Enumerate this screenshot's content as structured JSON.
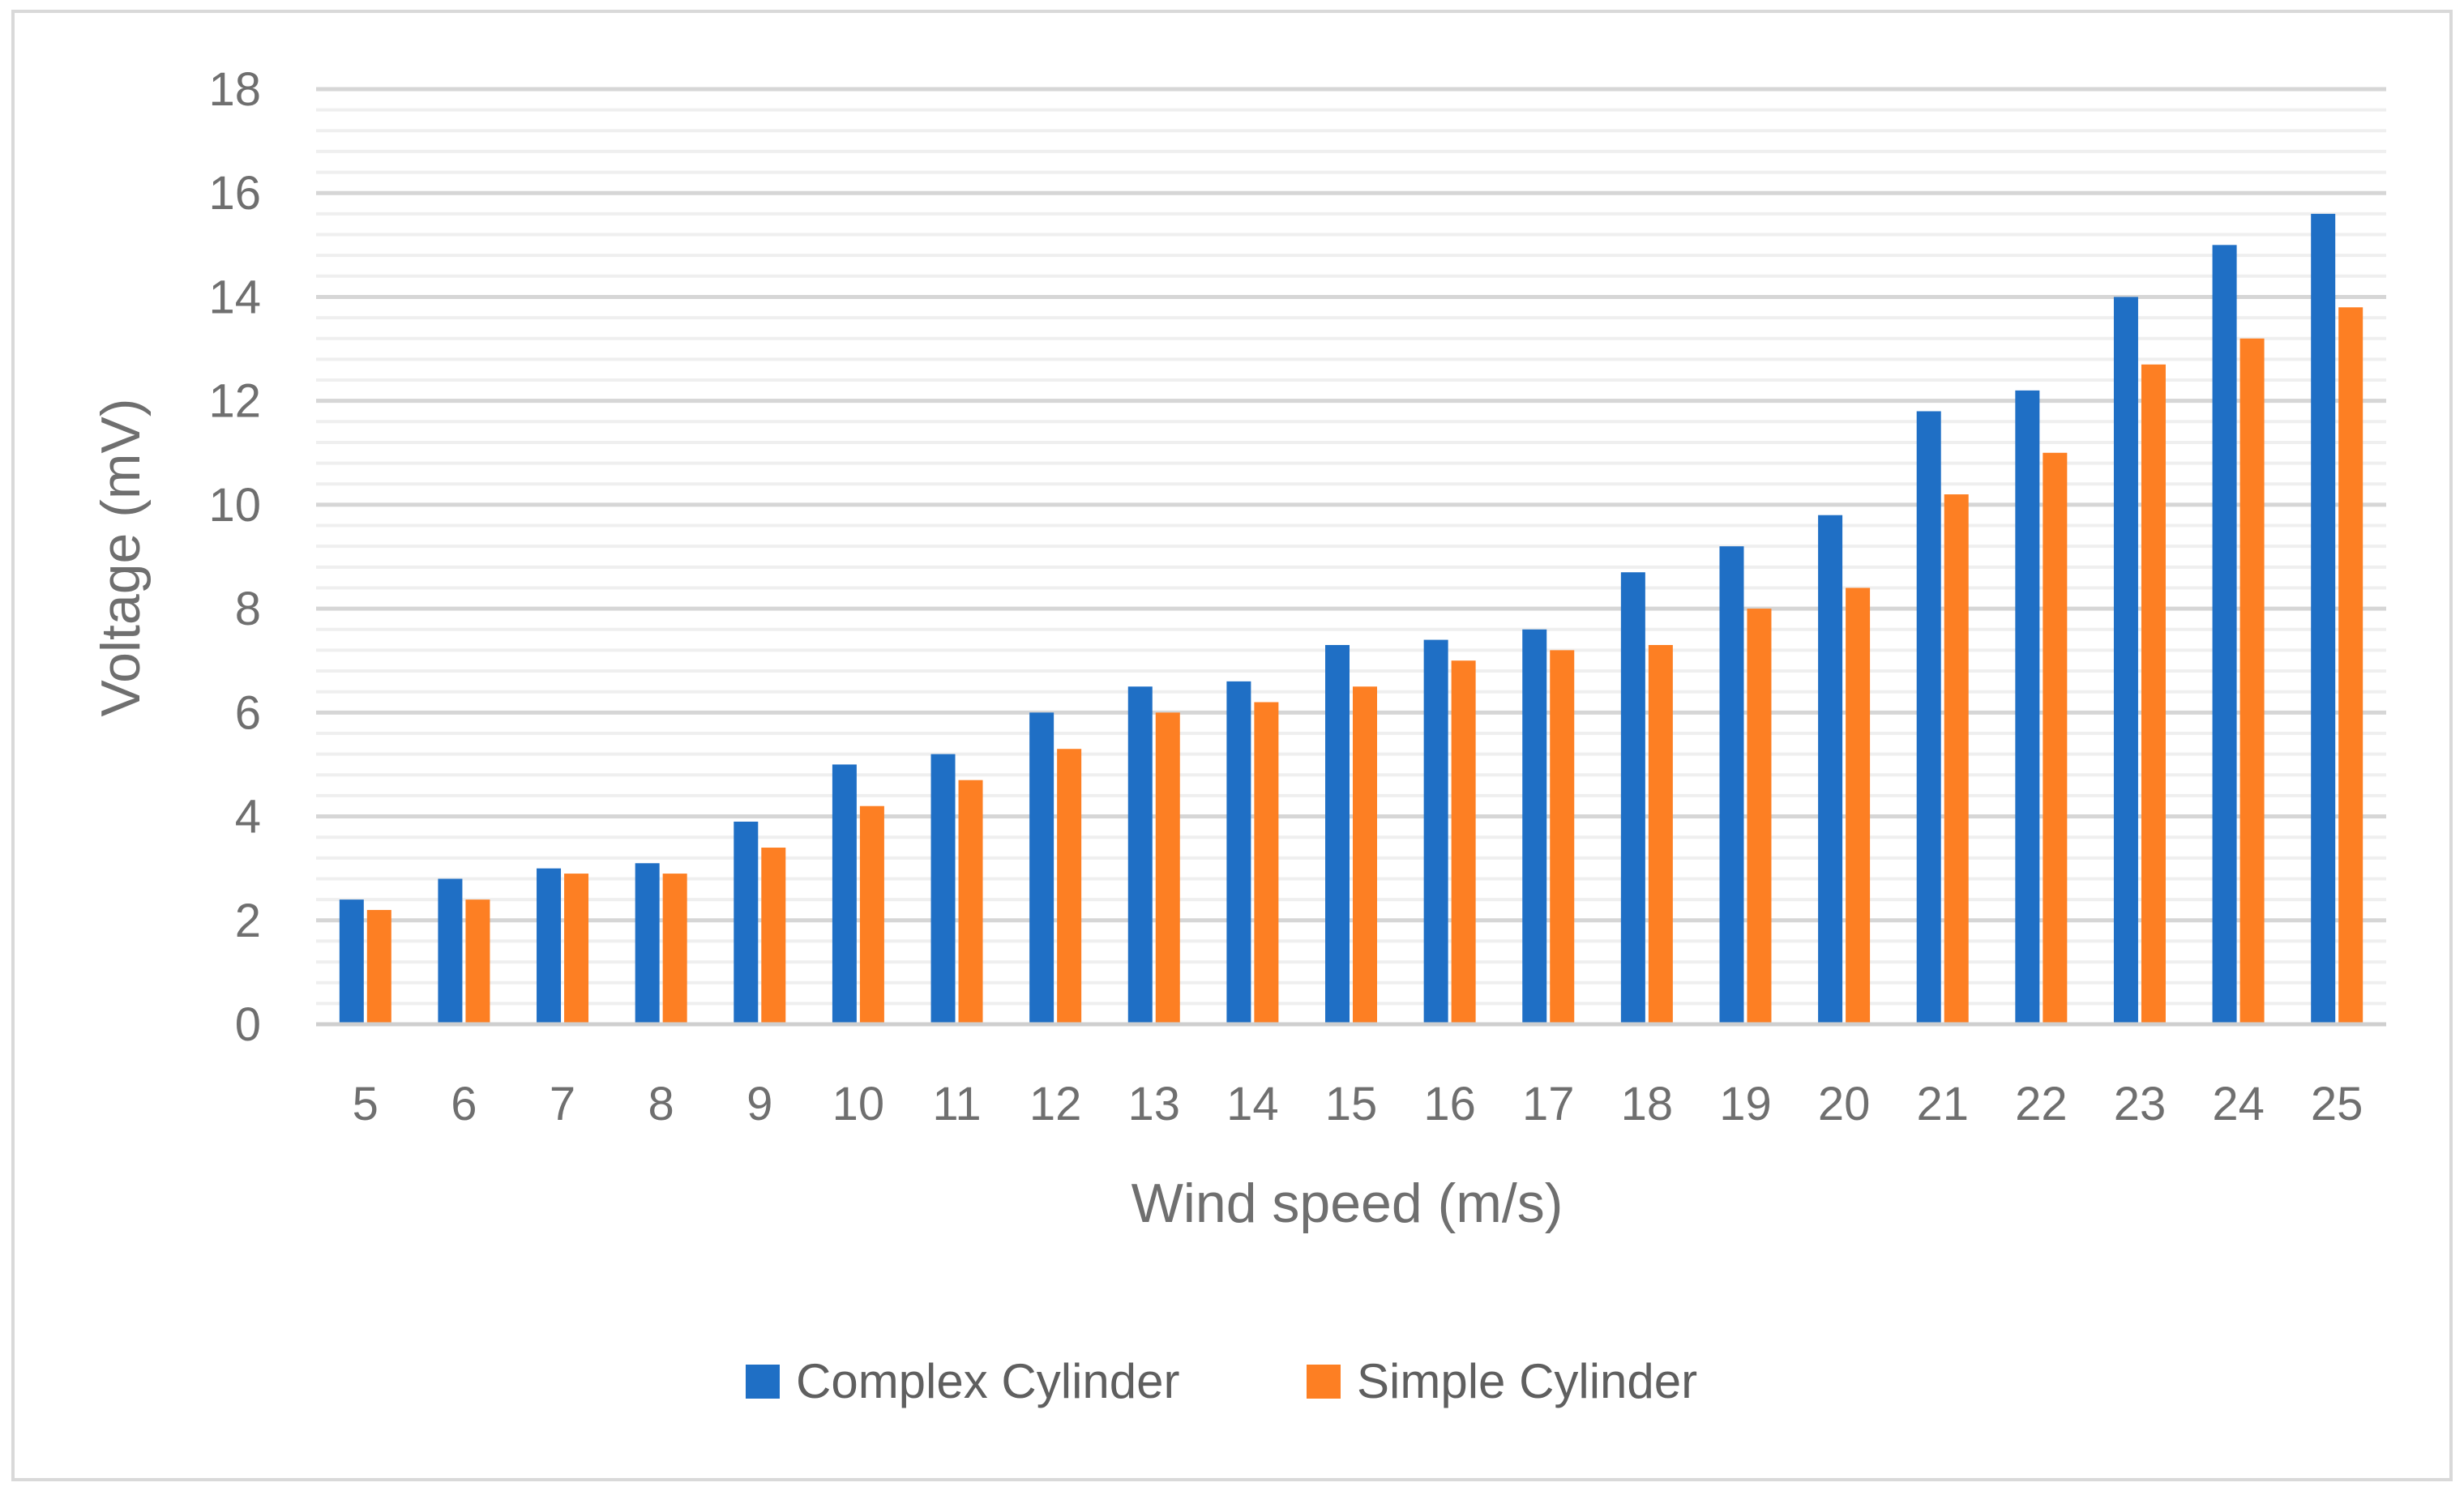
{
  "chart_data": {
    "type": "bar",
    "categories": [
      "5",
      "6",
      "7",
      "8",
      "9",
      "10",
      "11",
      "12",
      "13",
      "14",
      "15",
      "16",
      "17",
      "18",
      "19",
      "20",
      "21",
      "22",
      "23",
      "24",
      "25"
    ],
    "series": [
      {
        "name": "Complex Cylinder",
        "color": "#1f6fc5",
        "values": [
          2.4,
          2.8,
          3.0,
          3.1,
          3.9,
          5.0,
          5.2,
          6.0,
          6.5,
          6.6,
          7.3,
          7.4,
          7.6,
          8.7,
          9.2,
          9.8,
          11.8,
          12.2,
          14.0,
          15.0,
          15.6
        ]
      },
      {
        "name": "Simple Cylinder",
        "color": "#fd7f23",
        "values": [
          2.2,
          2.4,
          2.9,
          2.9,
          3.4,
          4.2,
          4.7,
          5.3,
          6.0,
          6.2,
          6.5,
          7.0,
          7.2,
          7.3,
          8.0,
          8.4,
          10.2,
          11.0,
          12.7,
          13.2,
          13.8
        ]
      }
    ],
    "xlabel": "Wind speed (m/s)",
    "ylabel": "Voltage (mV)",
    "ylim": [
      0,
      18
    ],
    "yticks": [
      "0",
      "2",
      "4",
      "6",
      "8",
      "10",
      "12",
      "14",
      "16",
      "18"
    ],
    "grid": true,
    "legend": "bottom-center"
  }
}
